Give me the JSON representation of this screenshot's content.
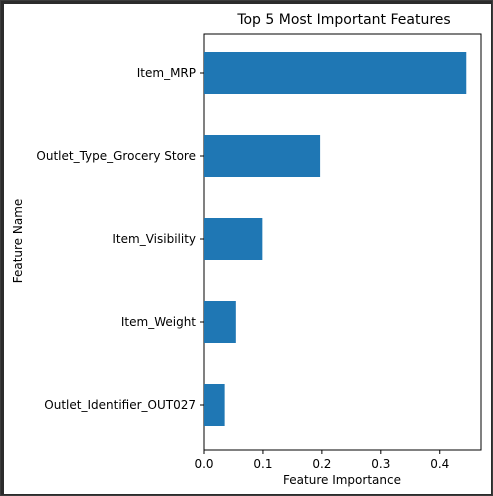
{
  "chart_data": {
    "type": "bar",
    "orientation": "horizontal",
    "title": "Top 5 Most Important Features",
    "xlabel": "Feature Importance",
    "ylabel": "Feature Name",
    "categories": [
      "Item_MRP",
      "Outlet_Type_Grocery Store",
      "Item_Visibility",
      "Item_Weight",
      "Outlet_Identifier_OUT027"
    ],
    "values": [
      0.445,
      0.197,
      0.099,
      0.054,
      0.035
    ],
    "xlim": [
      0.0,
      0.47
    ],
    "xticks": [
      "0.0",
      "0.1",
      "0.2",
      "0.3",
      "0.4"
    ],
    "xtick_values": [
      0.0,
      0.1,
      0.2,
      0.3,
      0.4
    ],
    "bar_color": "#1f77b4",
    "grid": false,
    "legend": "none"
  }
}
